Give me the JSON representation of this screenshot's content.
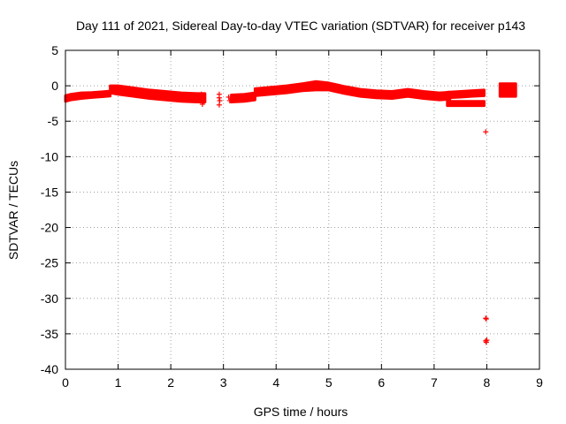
{
  "chart_data": {
    "type": "scatter",
    "title": "Day 111 of 2021, Sidereal Day-to-day VTEC variation (SDTVAR) for receiver p143",
    "xlabel": "GPS time / hours",
    "ylabel": "SDTVAR / TECUs",
    "xlim": [
      0,
      9
    ],
    "ylim": [
      -40,
      5
    ],
    "xticks": [
      0,
      1,
      2,
      3,
      4,
      5,
      6,
      7,
      8,
      9
    ],
    "yticks": [
      5,
      0,
      -5,
      -10,
      -15,
      -20,
      -25,
      -30,
      -35,
      -40
    ],
    "grid": true,
    "marker": "plus",
    "color": "#ff0000",
    "series": [
      {
        "band_segments": [
          {
            "x": [
              0.0,
              0.1,
              0.3,
              0.5,
              0.7,
              0.85
            ],
            "y_center": [
              -1.8,
              -1.6,
              -1.4,
              -1.3,
              -1.2,
              -1.1
            ],
            "y_halfwidth": [
              0.4,
              0.4,
              0.4,
              0.35,
              0.35,
              0.35
            ]
          },
          {
            "x": [
              0.85,
              1.0,
              1.3,
              1.6,
              1.9,
              2.2,
              2.5,
              2.65
            ],
            "y_center": [
              -0.5,
              -0.6,
              -0.9,
              -1.2,
              -1.4,
              -1.6,
              -1.7,
              -1.7
            ],
            "y_halfwidth": [
              0.5,
              0.6,
              0.6,
              0.6,
              0.6,
              0.6,
              0.6,
              0.6
            ]
          },
          {
            "x": [
              3.15,
              3.4,
              3.6
            ],
            "y_center": [
              -1.8,
              -1.7,
              -1.5
            ],
            "y_halfwidth": [
              0.5,
              0.5,
              0.5
            ]
          },
          {
            "x": [
              3.6,
              3.9,
              4.2,
              4.5,
              4.75,
              5.0,
              5.3,
              5.6,
              5.9,
              6.2,
              6.5,
              6.8,
              7.1,
              7.3
            ],
            "y_center": [
              -0.9,
              -0.7,
              -0.5,
              -0.2,
              0.0,
              -0.1,
              -0.6,
              -1.0,
              -1.2,
              -1.3,
              -1.0,
              -1.3,
              -1.5,
              -1.4
            ],
            "y_halfwidth": [
              0.5,
              0.5,
              0.5,
              0.5,
              0.6,
              0.5,
              0.5,
              0.5,
              0.5,
              0.5,
              0.5,
              0.5,
              0.5,
              0.5
            ]
          },
          {
            "x": [
              7.25,
              7.5,
              7.7,
              7.95
            ],
            "y_center": [
              -1.3,
              -1.2,
              -1.1,
              -1.0
            ],
            "y_halfwidth": [
              0.4,
              0.4,
              0.4,
              0.4
            ]
          },
          {
            "x": [
              7.25,
              7.5,
              7.7,
              7.95
            ],
            "y_center": [
              -2.5,
              -2.5,
              -2.5,
              -2.5
            ],
            "y_halfwidth": [
              0.3,
              0.3,
              0.3,
              0.3
            ]
          },
          {
            "x": [
              8.25,
              8.4,
              8.55
            ],
            "y_center": [
              -0.6,
              -0.6,
              -0.6
            ],
            "y_halfwidth": [
              0.9,
              0.9,
              0.9
            ]
          }
        ],
        "points": [
          [
            2.58,
            -1.2
          ],
          [
            2.6,
            -1.6
          ],
          [
            2.62,
            -2.2
          ],
          [
            2.6,
            -2.6
          ],
          [
            2.92,
            -1.2
          ],
          [
            2.92,
            -1.7
          ],
          [
            2.93,
            -2.1
          ],
          [
            2.92,
            -2.7
          ],
          [
            3.1,
            -1.6
          ],
          [
            3.12,
            -2.1
          ],
          [
            7.98,
            -6.5
          ],
          [
            7.98,
            -32.8
          ],
          [
            7.99,
            -32.9
          ],
          [
            7.98,
            -36.0
          ],
          [
            7.99,
            -36.2
          ],
          [
            8.0,
            -35.9
          ]
        ]
      }
    ]
  }
}
